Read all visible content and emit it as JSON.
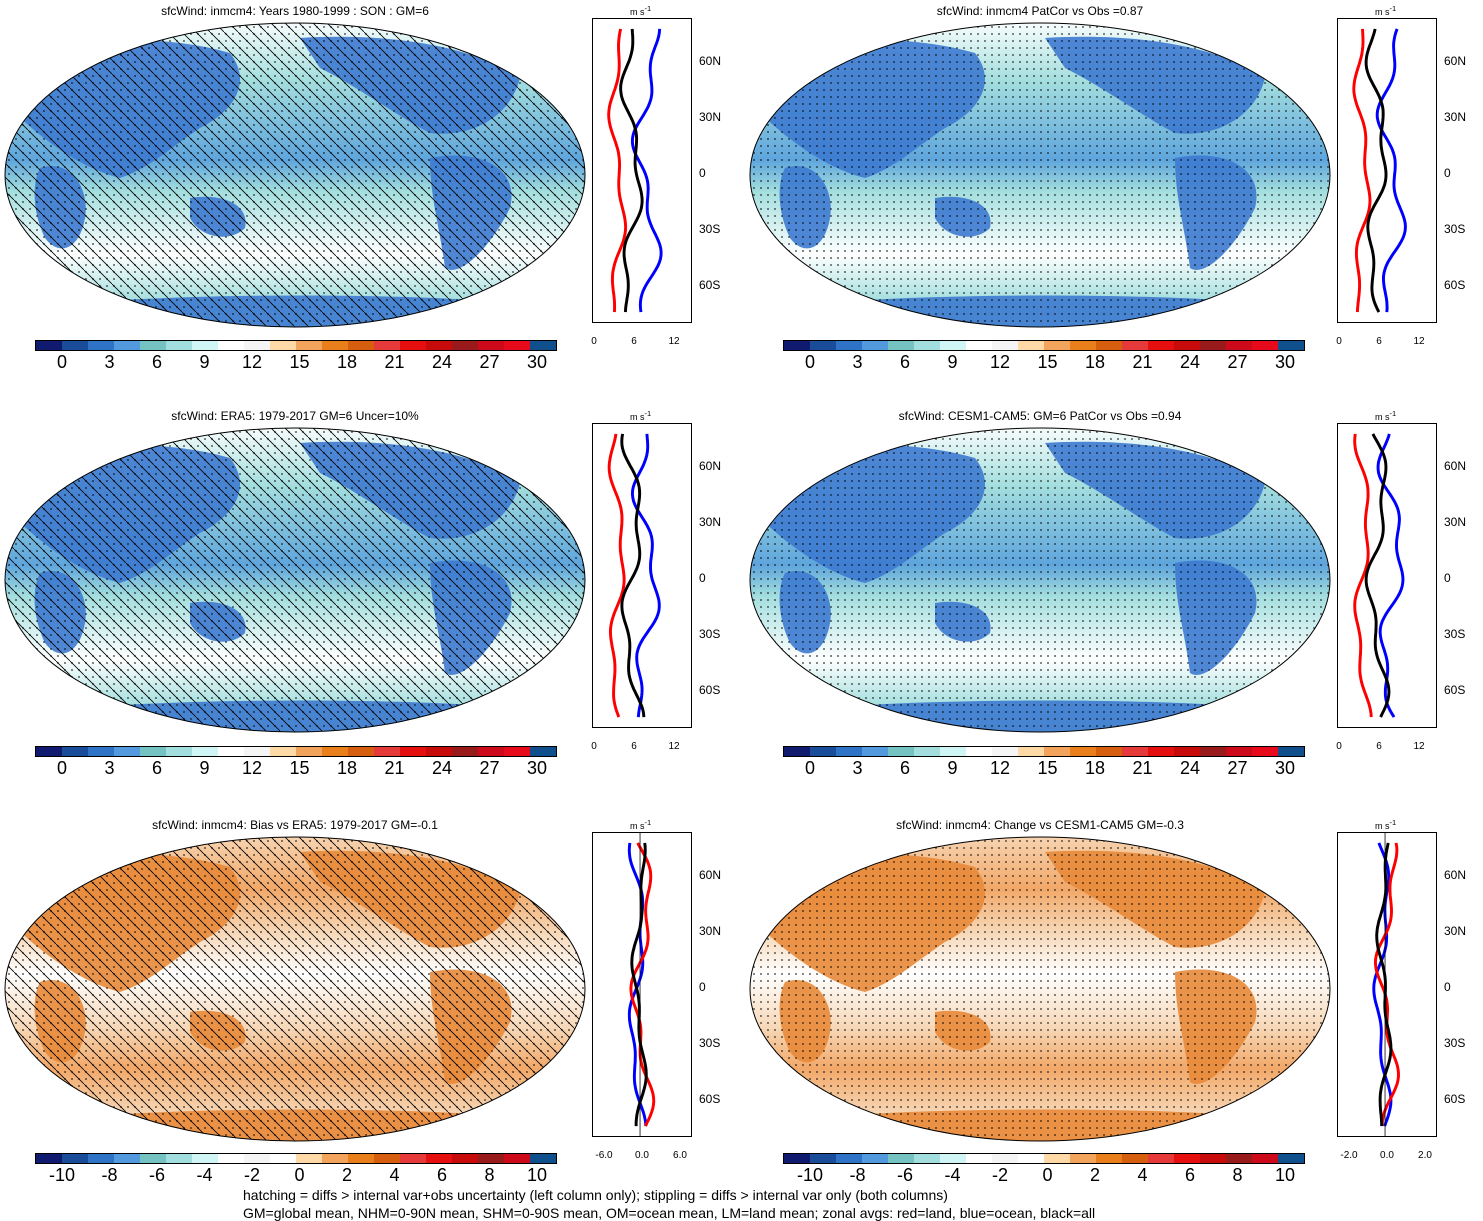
{
  "panels": [
    {
      "title": "sfcWind: inmcm4: Years 1980-1999 : SON : GM=6",
      "type": "mean",
      "hatch": true
    },
    {
      "title": "sfcWind: inmcm4 PatCor vs Obs =0.87",
      "type": "mean",
      "hatch": false
    },
    {
      "title": "sfcWind: ERA5: 1979-2017 GM=6 Uncer=10%",
      "type": "mean",
      "hatch": true
    },
    {
      "title": "sfcWind: CESM1-CAM5: GM=6 PatCor vs Obs =0.94",
      "type": "mean",
      "hatch": false
    },
    {
      "title": "sfcWind: inmcm4: Bias vs ERA5: 1979-2017  GM=-0.1",
      "type": "diff",
      "hatch": true
    },
    {
      "title": "sfcWind: inmcm4: Change vs CESM1-CAM5 GM=-0.3",
      "type": "diff",
      "hatch": false
    }
  ],
  "zonal_unit": "m s",
  "zonal_unit_sup": "-1",
  "lat_labels": [
    "60N",
    "30N",
    "0",
    "30S",
    "60S"
  ],
  "zonal_x_mean": [
    "0",
    "6",
    "12"
  ],
  "zonal_x_diff_left": [
    "-6.0",
    "0.0",
    "6.0"
  ],
  "zonal_x_diff_right": [
    "-2.0",
    "0.0",
    "2.0"
  ],
  "colorbar_mean_labels": [
    "0",
    "3",
    "6",
    "9",
    "12",
    "15",
    "18",
    "21",
    "24",
    "27",
    "30"
  ],
  "colorbar_diff_labels": [
    "-10",
    "-8",
    "-6",
    "-4",
    "-2",
    "0",
    "2",
    "4",
    "6",
    "8",
    "10"
  ],
  "colors": {
    "palette": [
      "#101a6e",
      "#1a4d99",
      "#2f73c7",
      "#5299dd",
      "#75c2c2",
      "#a3dede",
      "#d0f5f5",
      "#ffffff",
      "#f5f5f5",
      "#ffd9a6",
      "#f2a35c",
      "#e87f1a",
      "#d65e0f",
      "#e63a3a",
      "#e60f0f",
      "#c70a0a",
      "#991a1a",
      "#cc0a1a",
      "#e60a1a",
      "#0f4f8c"
    ],
    "land": "#3d7ad0",
    "ocean_mean": "#bfe5ef",
    "ocean_diff": "#f7c9a0",
    "land_diff": "#e88a3a",
    "land_series": "#ff0000",
    "ocean_series": "#0000ff",
    "all_series": "#000000"
  },
  "footnote_1": "hatching = diffs > internal var+obs uncertainty (left column only); stippling = diffs > internal var only (both columns)",
  "footnote_2": "GM=global mean, NHM=0-90N mean, SHM=0-90S mean, OM=ocean mean, LM=land mean; zonal avgs: red=land, blue=ocean, black=all"
}
